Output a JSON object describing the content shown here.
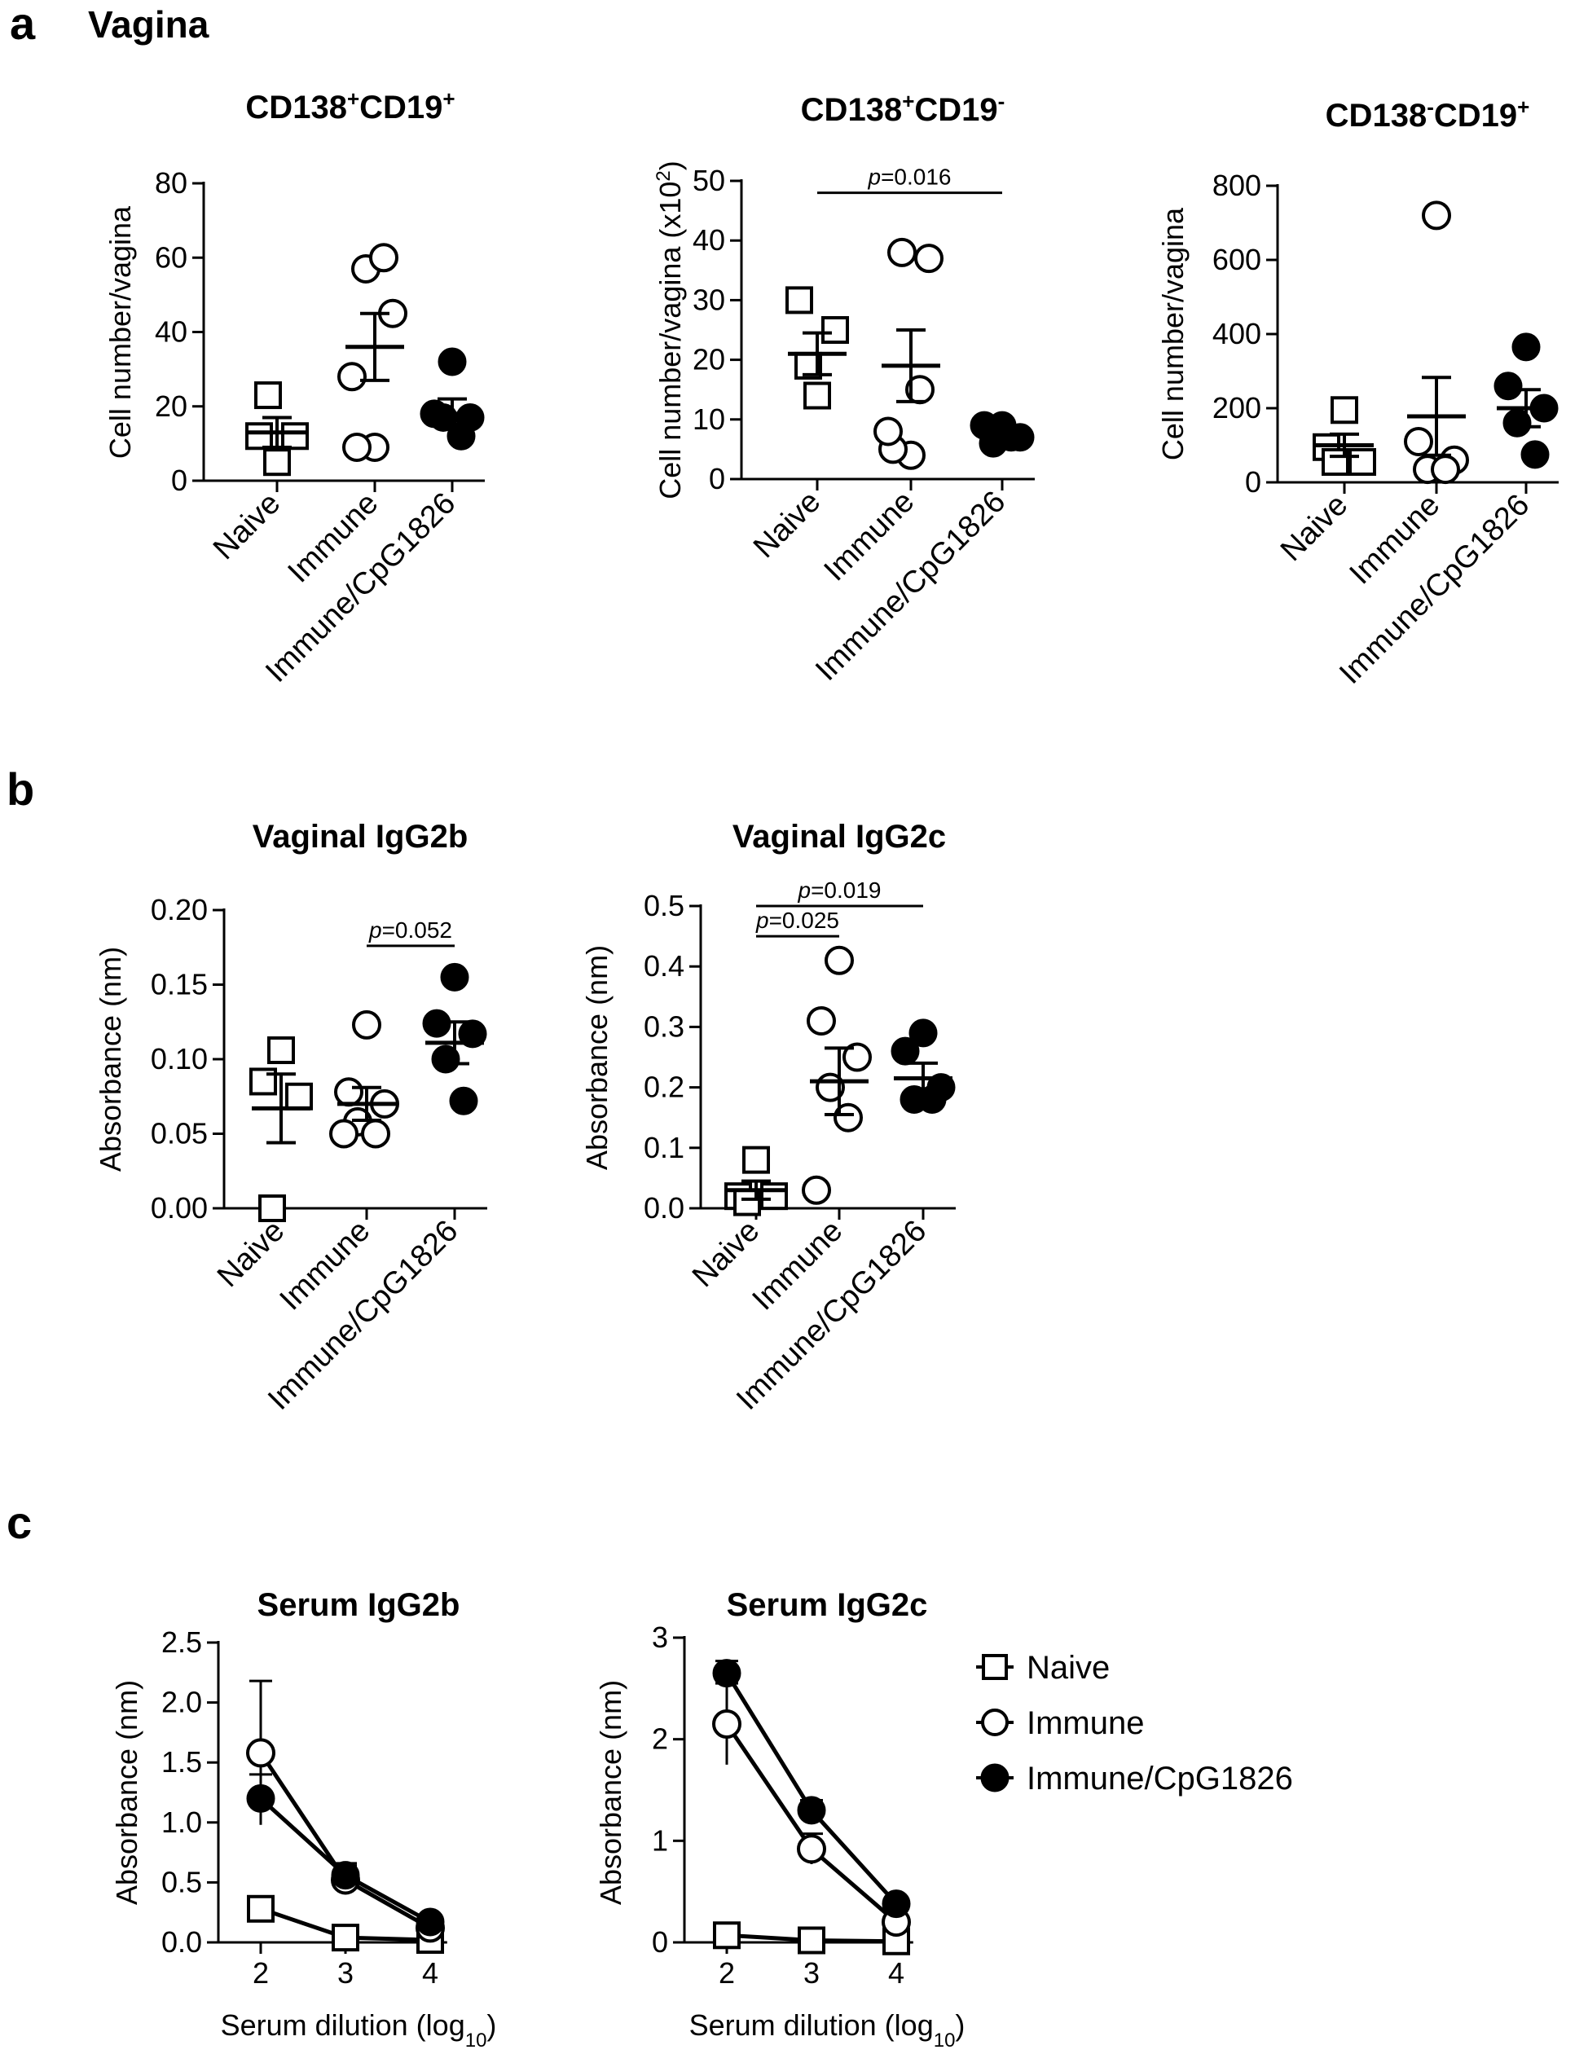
{
  "figure": {
    "panel_labels": [
      "a",
      "b",
      "c"
    ],
    "panel_a_heading": "Vagina",
    "legend": [
      {
        "name": "Naive",
        "marker": "square-open-icon"
      },
      {
        "name": "Immune",
        "marker": "circle-open-icon"
      },
      {
        "name": "Immune/CpG1826",
        "marker": "circle-filled-icon"
      }
    ]
  },
  "chart_data": [
    {
      "id": "a1",
      "type": "scatter",
      "panel": "a",
      "title_parts": [
        "CD138",
        "+",
        "CD19",
        "+"
      ],
      "ylabel": "Cell number/vagina",
      "ylim": [
        0,
        80
      ],
      "yticks": [
        0,
        20,
        40,
        60,
        80
      ],
      "ytick_labels": [
        "0",
        "20",
        "40",
        "60",
        "80"
      ],
      "categories": [
        "Naive",
        "Immune",
        "Immune/CpG1826"
      ],
      "groups": [
        {
          "name": "Naive",
          "marker": "square-open",
          "points": [
            5,
            12,
            12,
            23
          ],
          "mean": 13,
          "sem": 4
        },
        {
          "name": "Immune",
          "marker": "circle-open",
          "points": [
            9,
            9,
            45,
            57,
            60,
            28
          ],
          "mean": 36,
          "sem": 9
        },
        {
          "name": "Immune/CpG1826",
          "marker": "circle-filled",
          "points": [
            32,
            18,
            17,
            17,
            12
          ],
          "mean": 18,
          "sem": 4
        }
      ],
      "annotations": []
    },
    {
      "id": "a2",
      "type": "scatter",
      "panel": "a",
      "title_parts": [
        "CD138",
        "+",
        "CD19",
        "-"
      ],
      "ylabel_parts": [
        "Cell number/vagina (x10",
        "2",
        ")"
      ],
      "ylim": [
        0,
        50
      ],
      "yticks": [
        0,
        10,
        20,
        30,
        40,
        50
      ],
      "ytick_labels": [
        "0",
        "10",
        "20",
        "30",
        "40",
        "50"
      ],
      "categories": [
        "Naive",
        "Immune",
        "Immune/CpG1826"
      ],
      "groups": [
        {
          "name": "Naive",
          "marker": "square-open",
          "points": [
            14,
            30,
            25,
            19
          ],
          "mean": 21,
          "sem": 3.5
        },
        {
          "name": "Immune",
          "marker": "circle-open",
          "points": [
            4,
            5,
            37,
            38,
            15,
            8
          ],
          "mean": 19,
          "sem": 6
        },
        {
          "name": "Immune/CpG1826",
          "marker": "circle-filled",
          "points": [
            9,
            9,
            7,
            6,
            7
          ],
          "mean": 8,
          "sem": 0.5
        }
      ],
      "annotations": [
        {
          "from": 0,
          "to": 2,
          "y": 48,
          "p_prefix": "p",
          "p_value": "=0.016"
        }
      ]
    },
    {
      "id": "a3",
      "type": "scatter",
      "panel": "a",
      "title_parts": [
        "CD138",
        "-",
        "CD19",
        "+"
      ],
      "ylabel": "Cell number/vagina",
      "ylim": [
        0,
        800
      ],
      "yticks": [
        0,
        200,
        400,
        600,
        800
      ],
      "ytick_labels": [
        "0",
        "200",
        "400",
        "600",
        "800"
      ],
      "categories": [
        "Naive",
        "Immune",
        "Immune/CpG1826"
      ],
      "groups": [
        {
          "name": "Naive",
          "marker": "square-open",
          "points": [
            195,
            95,
            55,
            55
          ],
          "mean": 100,
          "sem": 30
        },
        {
          "name": "Immune",
          "marker": "circle-open",
          "points": [
            720,
            110,
            60,
            35,
            35
          ],
          "mean": 178,
          "sem": 105
        },
        {
          "name": "Immune/CpG1826",
          "marker": "circle-filled",
          "points": [
            365,
            260,
            200,
            160,
            75
          ],
          "mean": 200,
          "sem": 50
        }
      ],
      "annotations": []
    },
    {
      "id": "b1",
      "type": "scatter",
      "panel": "b",
      "title": "Vaginal IgG2b",
      "ylabel": "Absorbance (nm)",
      "ylim": [
        0,
        0.2
      ],
      "yticks": [
        0,
        0.05,
        0.1,
        0.15,
        0.2
      ],
      "ytick_labels": [
        "0.00",
        "0.05",
        "0.10",
        "0.15",
        "0.20"
      ],
      "categories": [
        "Naive",
        "Immune",
        "Immune/CpG1826"
      ],
      "groups": [
        {
          "name": "Naive",
          "marker": "square-open",
          "points": [
            0.106,
            0.085,
            0.075,
            0.0
          ],
          "mean": 0.067,
          "sem": 0.023
        },
        {
          "name": "Immune",
          "marker": "circle-open",
          "points": [
            0.123,
            0.078,
            0.07,
            0.058,
            0.05,
            0.05
          ],
          "mean": 0.07,
          "sem": 0.011
        },
        {
          "name": "Immune/CpG1826",
          "marker": "circle-filled",
          "points": [
            0.155,
            0.124,
            0.117,
            0.1,
            0.072
          ],
          "mean": 0.111,
          "sem": 0.014
        }
      ],
      "annotations": [
        {
          "from": 1,
          "to": 2,
          "y": 0.176,
          "p_prefix": "p",
          "p_value": "=0.052"
        }
      ]
    },
    {
      "id": "b2",
      "type": "scatter",
      "panel": "b",
      "title": "Vaginal IgG2c",
      "ylabel": "Absorbance (nm)",
      "ylim": [
        0,
        0.5
      ],
      "yticks": [
        0,
        0.1,
        0.2,
        0.3,
        0.4,
        0.5
      ],
      "ytick_labels": [
        "0.0",
        "0.1",
        "0.2",
        "0.3",
        "0.4",
        "0.5"
      ],
      "categories": [
        "Naive",
        "Immune",
        "Immune/CpG1826"
      ],
      "groups": [
        {
          "name": "Naive",
          "marker": "square-open",
          "points": [
            0.08,
            0.02,
            0.02,
            0.01
          ],
          "mean": 0.03,
          "sem": 0.015
        },
        {
          "name": "Immune",
          "marker": "circle-open",
          "points": [
            0.41,
            0.31,
            0.25,
            0.2,
            0.15,
            0.03
          ],
          "mean": 0.21,
          "sem": 0.055
        },
        {
          "name": "Immune/CpG1826",
          "marker": "circle-filled",
          "points": [
            0.29,
            0.26,
            0.2,
            0.18,
            0.18
          ],
          "mean": 0.215,
          "sem": 0.025
        }
      ],
      "annotations": [
        {
          "from": 0,
          "to": 2,
          "y": 0.5,
          "p_prefix": "p",
          "p_value": "=0.019"
        },
        {
          "from": 0,
          "to": 1,
          "y": 0.45,
          "p_prefix": "p",
          "p_value": "=0.025"
        }
      ]
    },
    {
      "id": "c1",
      "type": "line",
      "panel": "c",
      "title": "Serum IgG2b",
      "ylabel": "Absorbance (nm)",
      "xlabel_parts": [
        "Serum dilution (log",
        "10",
        ")"
      ],
      "x": [
        2,
        3,
        4
      ],
      "xlim": [
        1.5,
        4.2
      ],
      "xtick_labels": [
        "2",
        "3",
        "4"
      ],
      "ylim": [
        0,
        2.5
      ],
      "yticks": [
        0,
        0.5,
        1,
        1.5,
        2,
        2.5
      ],
      "ytick_labels": [
        "0.0",
        "0.5",
        "1.0",
        "1.5",
        "2.0",
        "2.5"
      ],
      "series": [
        {
          "name": "Naive",
          "marker": "square-open",
          "values": [
            0.28,
            0.04,
            0.02
          ],
          "err": [
            0.08,
            0.01,
            0.01
          ]
        },
        {
          "name": "Immune",
          "marker": "circle-open",
          "values": [
            1.58,
            0.52,
            0.12
          ],
          "err": [
            0.6,
            0.12,
            0.03
          ]
        },
        {
          "name": "Immune/CpG1826",
          "marker": "circle-filled",
          "values": [
            1.2,
            0.56,
            0.17
          ],
          "err": [
            0.2,
            0.1,
            0.03
          ]
        }
      ]
    },
    {
      "id": "c2",
      "type": "line",
      "panel": "c",
      "title": "Serum IgG2c",
      "ylabel": "Absorbance (nm)",
      "xlabel_parts": [
        "Serum dilution (log",
        "10",
        ")"
      ],
      "x": [
        2,
        3,
        4
      ],
      "xlim": [
        1.5,
        4.2
      ],
      "xtick_labels": [
        "2",
        "3",
        "4"
      ],
      "ylim": [
        0,
        3
      ],
      "yticks": [
        0,
        1,
        2,
        3
      ],
      "ytick_labels": [
        "0",
        "1",
        "2",
        "3"
      ],
      "series": [
        {
          "name": "Naive",
          "marker": "square-open",
          "values": [
            0.07,
            0.02,
            0.01
          ],
          "err": [
            0.02,
            0.01,
            0.01
          ]
        },
        {
          "name": "Immune",
          "marker": "circle-open",
          "values": [
            2.15,
            0.92,
            0.2
          ],
          "err": [
            0.4,
            0.15,
            0.05
          ]
        },
        {
          "name": "Immune/CpG1826",
          "marker": "circle-filled",
          "values": [
            2.65,
            1.3,
            0.38
          ],
          "err": [
            0.12,
            0.1,
            0.05
          ]
        }
      ]
    }
  ]
}
